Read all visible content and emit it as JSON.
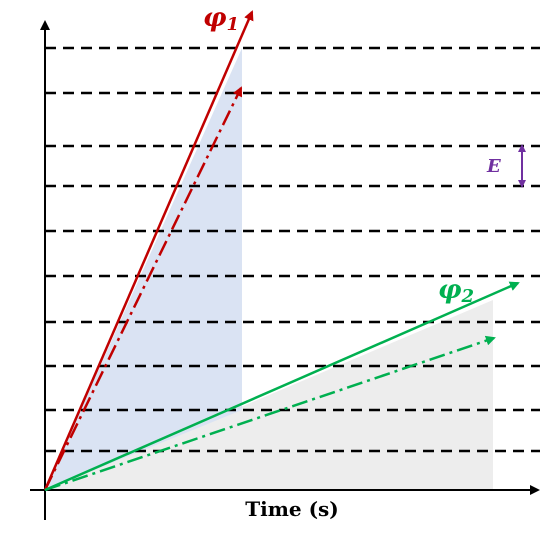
{
  "x_axis_label": "Time (s)",
  "phi1": {
    "symbol": "φ",
    "subscript": "1",
    "color": "#c00000"
  },
  "phi2": {
    "symbol": "φ",
    "subscript": "2",
    "color": "#00b050"
  },
  "energy_label": "E",
  "energy_color": "#7030a0",
  "dashed_line_count": 10,
  "colors": {
    "axis": "#000000",
    "dash": "#000000",
    "fill_phi1": "#dae3f3",
    "fill_phi2": "#ededed"
  }
}
